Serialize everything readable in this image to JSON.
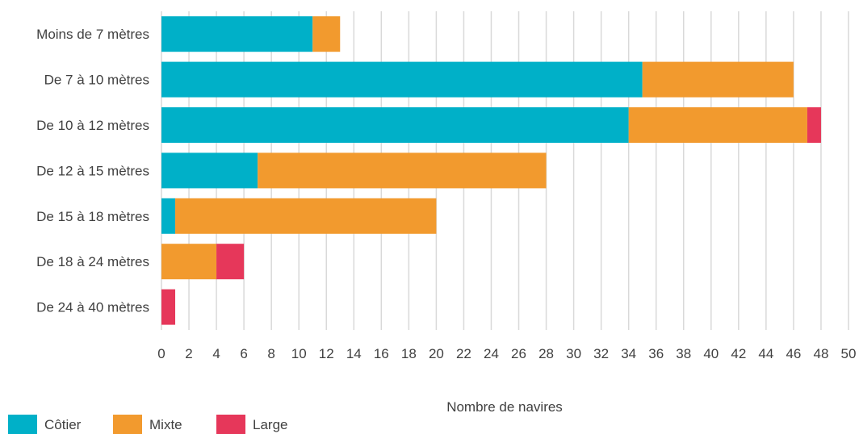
{
  "chart_data": {
    "type": "bar",
    "orientation": "horizontal",
    "stacked": true,
    "categories": [
      "Moins de 7 mètres",
      "De 7 à 10 mètres",
      "De 10 à 12 mètres",
      "De 12 à 15 mètres",
      "De 15 à 18 mètres",
      "De 18 à 24 mètres",
      "De 24 à 40 mètres"
    ],
    "series": [
      {
        "name": "Côtier",
        "color": "#00B0C8",
        "values": [
          11,
          35,
          34,
          7,
          1,
          0,
          0
        ]
      },
      {
        "name": "Mixte",
        "color": "#F29A2E",
        "values": [
          2,
          11,
          13,
          21,
          19,
          4,
          0
        ]
      },
      {
        "name": "Large",
        "color": "#E6375A",
        "values": [
          0,
          0,
          1,
          0,
          0,
          2,
          1
        ]
      }
    ],
    "xlabel": "Nombre de navires",
    "xlim": [
      0,
      50
    ],
    "xticks": [
      0,
      2,
      4,
      6,
      8,
      10,
      12,
      14,
      16,
      18,
      20,
      22,
      24,
      26,
      28,
      30,
      32,
      34,
      36,
      38,
      40,
      42,
      44,
      46,
      48,
      50
    ],
    "grid": true,
    "legend_position": "bottom-left"
  }
}
